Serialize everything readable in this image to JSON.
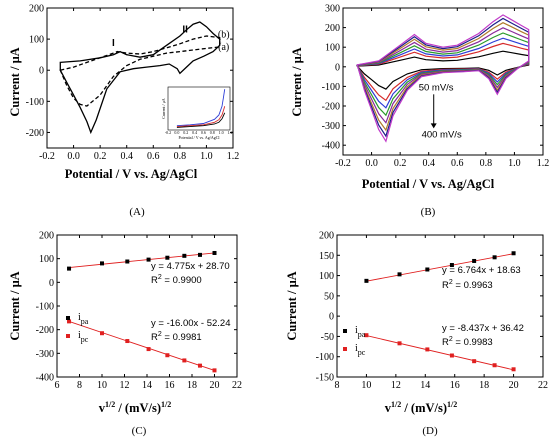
{
  "chart_data": [
    {
      "panel": "A",
      "type": "line",
      "panel_label": "(A)",
      "xlabel": "Potential / V vs. Ag/AgCl",
      "ylabel": "Current / μA",
      "xlim": [
        -0.2,
        1.2
      ],
      "ylim": [
        -250,
        200
      ],
      "xticks": [
        -0.2,
        0.0,
        0.2,
        0.4,
        0.6,
        0.8,
        1.0,
        1.2
      ],
      "yticks": [
        -200,
        -100,
        0,
        100,
        200
      ],
      "xticklabels": [
        "-0.2",
        "0.0",
        "0.2",
        "0.4",
        "0.6",
        "0.8",
        "1.0",
        "1.2"
      ],
      "yticklabels": [
        "-200",
        "-100",
        "0",
        "100",
        "200"
      ],
      "annotations": [
        {
          "text": "I",
          "x": 0.3,
          "y": 78
        },
        {
          "text": "II",
          "x": 0.84,
          "y": 122
        },
        {
          "text": "(b)",
          "x": 1.13,
          "y": 105
        },
        {
          "text": "(a)",
          "x": 1.13,
          "y": 65
        }
      ],
      "series": [
        {
          "name": "(b)",
          "style": "solid",
          "color": "#000000",
          "x": [
            -0.1,
            0.05,
            0.2,
            0.3,
            0.35,
            0.4,
            0.5,
            0.6,
            0.7,
            0.8,
            0.85,
            0.9,
            0.95,
            1.0,
            1.05,
            1.1,
            1.1,
            1.05,
            0.98,
            0.9,
            0.85,
            0.8,
            0.78,
            0.72,
            0.65,
            0.55,
            0.45,
            0.35,
            0.25,
            0.17,
            0.13,
            0.1,
            0.05,
            0.0,
            -0.05,
            -0.1
          ],
          "y": [
            25,
            30,
            40,
            50,
            60,
            50,
            42,
            50,
            80,
            110,
            130,
            148,
            155,
            140,
            118,
            100,
            80,
            60,
            45,
            30,
            10,
            -10,
            5,
            20,
            15,
            10,
            5,
            -5,
            -60,
            -160,
            -200,
            -165,
            -120,
            -80,
            -40,
            0
          ]
        },
        {
          "name": "(a)",
          "style": "dashed",
          "color": "#000000",
          "x": [
            -0.1,
            0.0,
            0.1,
            0.2,
            0.3,
            0.33,
            0.4,
            0.5,
            0.6,
            0.7,
            0.8,
            0.9,
            1.0,
            1.1,
            1.1,
            1.0,
            0.9,
            0.8,
            0.7,
            0.65,
            0.5,
            0.4,
            0.3,
            0.2,
            0.1,
            0.05,
            0.0,
            -0.05,
            -0.1
          ],
          "y": [
            0,
            10,
            25,
            40,
            55,
            60,
            55,
            52,
            60,
            72,
            85,
            100,
            110,
            105,
            75,
            70,
            65,
            60,
            55,
            50,
            35,
            15,
            -20,
            -80,
            -115,
            -110,
            -90,
            -50,
            0
          ]
        }
      ],
      "inset": {
        "type": "line",
        "xlabel": "Potential / V vs. Ag/AgCl",
        "ylabel": "Current / μA",
        "xticklabels": [
          "-0.2",
          "0.0",
          "0.2",
          "0.4",
          "0.6",
          "0.8",
          "1.0",
          "1.2"
        ],
        "xlim": [
          -0.2,
          1.2
        ],
        "ylim": [
          0,
          100
        ],
        "series": [
          {
            "color": "#2e3dd6",
            "x": [
              0.0,
              0.3,
              0.6,
              0.85,
              0.95,
              1.02,
              1.05,
              1.08
            ],
            "y": [
              10,
              12,
              15,
              25,
              35,
              55,
              75,
              95
            ]
          },
          {
            "color": "#d62a2a",
            "x": [
              0.0,
              0.3,
              0.6,
              0.85,
              0.95,
              1.02,
              1.05,
              1.08
            ],
            "y": [
              8,
              10,
              12,
              18,
              24,
              35,
              45,
              55
            ]
          },
          {
            "color": "#000000",
            "x": [
              0.0,
              0.3,
              0.6,
              0.85,
              0.95,
              1.02,
              1.05,
              1.08
            ],
            "y": [
              6,
              8,
              10,
              14,
              18,
              26,
              33,
              40
            ]
          }
        ]
      }
    },
    {
      "panel": "B",
      "type": "line",
      "panel_label": "(B)",
      "xlabel": "Potential / V vs. Ag/AgCl",
      "ylabel": "Current / μA",
      "xlim": [
        -0.2,
        1.2
      ],
      "ylim": [
        -450,
        300
      ],
      "xticks": [
        -0.2,
        0.0,
        0.2,
        0.4,
        0.6,
        0.8,
        1.0,
        1.2
      ],
      "yticks": [
        -400,
        -300,
        -200,
        -100,
        0,
        100,
        200,
        300
      ],
      "xticklabels": [
        "-0.2",
        "0.0",
        "0.2",
        "0.4",
        "0.6",
        "0.8",
        "1.0",
        "1.2"
      ],
      "yticklabels": [
        "-400",
        "-300",
        "-200",
        "-100",
        "0",
        "100",
        "200",
        "300"
      ],
      "annotations": [
        {
          "text": "50 mV/s",
          "x": 0.33,
          "y": -120
        },
        {
          "text": "400 mV/s",
          "x": 0.35,
          "y": -360
        }
      ],
      "scan_rates": [
        "50",
        "100",
        "150",
        "200",
        "250",
        "300",
        "350",
        "400"
      ],
      "series": [
        {
          "color": "#000000",
          "scale": 0.3
        },
        {
          "color": "#d62a2a",
          "scale": 0.45
        },
        {
          "color": "#2e3dd6",
          "scale": 0.55
        },
        {
          "color": "#2a9a2a",
          "scale": 0.65
        },
        {
          "color": "#8a2a9a",
          "scale": 0.75
        },
        {
          "color": "#b07a2a",
          "scale": 0.85
        },
        {
          "color": "#1d1d8a",
          "scale": 0.93
        },
        {
          "color": "#c03ac8",
          "scale": 1.0
        }
      ],
      "base_curve": {
        "x": [
          -0.1,
          0.05,
          0.2,
          0.3,
          0.38,
          0.5,
          0.6,
          0.75,
          0.85,
          0.92,
          0.98,
          1.05,
          1.1,
          1.1,
          1.02,
          0.94,
          0.88,
          0.82,
          0.75,
          0.65,
          0.5,
          0.35,
          0.25,
          0.15,
          0.1,
          0.05,
          0.0,
          -0.05,
          -0.1
        ],
        "y": [
          10,
          30,
          110,
          165,
          120,
          100,
          110,
          170,
          230,
          265,
          240,
          210,
          190,
          30,
          -10,
          -60,
          -140,
          -60,
          -20,
          -25,
          -30,
          -50,
          -120,
          -250,
          -380,
          -320,
          -220,
          -120,
          10
        ]
      }
    },
    {
      "panel": "C",
      "type": "scatter",
      "panel_label": "(C)",
      "xlabel": "v",
      "xlabel_sup1": "1/2",
      "xlabel_mid": " / (mV/s)",
      "xlabel_sup2": "1/2",
      "ylabel": "Current / μA",
      "xlim": [
        6,
        22
      ],
      "ylim": [
        -400,
        200
      ],
      "xticks": [
        6,
        8,
        10,
        12,
        14,
        16,
        18,
        20,
        22
      ],
      "yticks": [
        -400,
        -300,
        -200,
        -100,
        0,
        100,
        200
      ],
      "xticklabels": [
        "6",
        "8",
        "10",
        "12",
        "14",
        "16",
        "18",
        "20",
        "22"
      ],
      "yticklabels": [
        "-400",
        "-300",
        "-200",
        "-100",
        "0",
        "100",
        "200"
      ],
      "legend": [
        {
          "label": "i",
          "sub": "pa",
          "color": "#000000"
        },
        {
          "label": "i",
          "sub": "pc",
          "color": "#e02020"
        }
      ],
      "annotations": [
        {
          "text": "y = 4.775x + 28.70"
        },
        {
          "text": "R",
          "sup": "2",
          "after": " = 0.9900"
        },
        {
          "text": "y = -16.00x - 52.24"
        },
        {
          "text": "R",
          "sup": "2",
          "after": " = 0.9981"
        }
      ],
      "series": [
        {
          "name": "i_pa",
          "color": "#000000",
          "x": [
            7.07,
            10.0,
            12.25,
            14.14,
            15.81,
            17.32,
            18.71,
            20.0
          ],
          "y": [
            58,
            80,
            88,
            96,
            104,
            112,
            116,
            124
          ],
          "fit": [
            4.775,
            28.7
          ]
        },
        {
          "name": "i_pc",
          "color": "#e02020",
          "x": [
            7.07,
            10.0,
            12.25,
            14.14,
            15.81,
            17.32,
            18.71,
            20.0
          ],
          "y": [
            -165,
            -215,
            -248,
            -282,
            -308,
            -330,
            -352,
            -372
          ],
          "fit": [
            -16.0,
            -52.24
          ]
        }
      ]
    },
    {
      "panel": "D",
      "type": "scatter",
      "panel_label": "(D)",
      "xlabel": "v",
      "xlabel_sup1": "1/2",
      "xlabel_mid": " / (mV/s)",
      "xlabel_sup2": "1/2",
      "ylabel": "Current / μA",
      "xlim": [
        8,
        22
      ],
      "ylim": [
        -150,
        200
      ],
      "xticks": [
        8,
        10,
        12,
        14,
        16,
        18,
        20,
        22
      ],
      "yticks": [
        -150,
        -100,
        -50,
        0,
        50,
        100,
        150,
        200
      ],
      "xticklabels": [
        "8",
        "10",
        "12",
        "14",
        "16",
        "18",
        "20",
        "22"
      ],
      "yticklabels": [
        "-150",
        "-100",
        "-50",
        "0",
        "50",
        "100",
        "150",
        "200"
      ],
      "legend": [
        {
          "label": "i",
          "sub": "pa",
          "color": "#000000"
        },
        {
          "label": "i",
          "sub": "pc",
          "color": "#e02020"
        }
      ],
      "annotations": [
        {
          "text": "y = 6.764x + 18.63"
        },
        {
          "text": "R",
          "sup": "2",
          "after": " = 0.9963"
        },
        {
          "text": "y = -8.437x + 36.42"
        },
        {
          "text": "R",
          "sup": "2",
          "after": " = 0.9983"
        }
      ],
      "series": [
        {
          "name": "i_pa",
          "color": "#000000",
          "x": [
            10.0,
            12.25,
            14.14,
            15.81,
            17.32,
            18.71,
            20.0
          ],
          "y": [
            87,
            103,
            115,
            126,
            136,
            145,
            155
          ],
          "fit": [
            6.764,
            18.63
          ]
        },
        {
          "name": "i_pc",
          "color": "#e02020",
          "x": [
            10.0,
            12.25,
            14.14,
            15.81,
            17.32,
            18.71,
            20.0
          ],
          "y": [
            -47,
            -67,
            -82,
            -97,
            -111,
            -121,
            -131
          ],
          "fit": [
            -8.437,
            36.42
          ]
        }
      ]
    }
  ]
}
